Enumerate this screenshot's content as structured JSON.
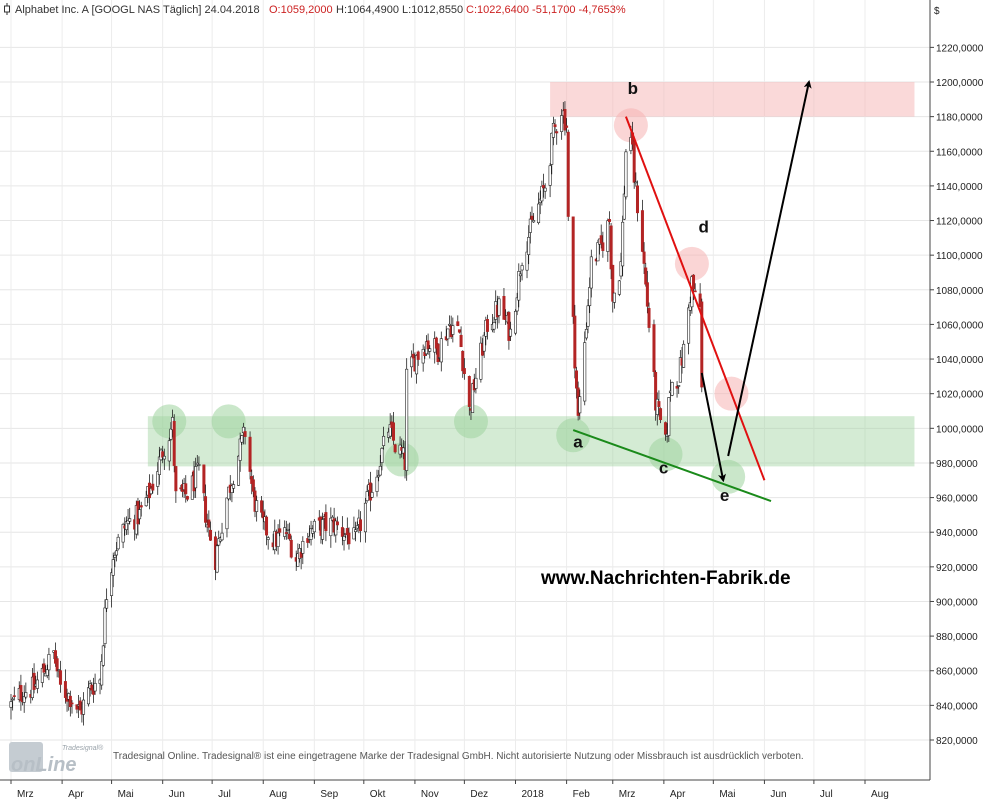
{
  "header": {
    "instrument": "Alphabet Inc. A [GOOGL NAS Täglich] 24.04.2018",
    "open": "O:1059,2000",
    "high": "H:1064,4900",
    "low": "L:1012,8550",
    "close": "C:1022,6400 -51,1700 -4,7653%"
  },
  "currency_symbol": "$",
  "watermark": "www.Nachrichten-Fabrik.de",
  "footer": "Tradesignal Online. Tradesignal® ist eine eingetragene Marke der Tradesignal GmbH. Nicht autorisierte Nutzung oder Missbrauch ist ausdrücklich verboten.",
  "logo": {
    "brand_small": "Tradesignal®",
    "brand_big": "onLine"
  },
  "colors": {
    "up_candle": "#ffffff",
    "down_candle": "#b32424",
    "wick": "#222222",
    "support_zone": "#9fd39f",
    "resistance_zone": "#f6b3b3",
    "upper_trendline": "#e01010",
    "lower_trendline": "#1a8a1a",
    "projection_arrow": "#000000"
  },
  "chart_data": {
    "type": "candlestick",
    "title": "Alphabet Inc. A [GOOGL NAS Täglich] 24.04.2018",
    "y_axis": {
      "ylim": [
        810,
        1230
      ],
      "ticks": [
        "820,0000",
        "840,0000",
        "860,0000",
        "880,0000",
        "900,0000",
        "920,0000",
        "940,0000",
        "960,0000",
        "980,0000",
        "1000,0000",
        "1020,0000",
        "1040,0000",
        "1060,0000",
        "1080,0000",
        "1100,0000",
        "1120,0000",
        "1140,0000",
        "1160,0000",
        "1180,0000",
        "1200,0000",
        "1220,0000"
      ],
      "tick_values": [
        820,
        840,
        860,
        880,
        900,
        920,
        940,
        960,
        980,
        1000,
        1020,
        1040,
        1060,
        1080,
        1100,
        1120,
        1140,
        1160,
        1180,
        1200,
        1220
      ]
    },
    "x_axis": {
      "start_date": "2017-03-01",
      "end_date": "2018-08-31",
      "labels": [
        {
          "label": "Mrz",
          "date": "2017-03-01"
        },
        {
          "label": "Apr",
          "date": "2017-04-01"
        },
        {
          "label": "Mai",
          "date": "2017-05-01"
        },
        {
          "label": "Jun",
          "date": "2017-06-01"
        },
        {
          "label": "Jul",
          "date": "2017-07-01"
        },
        {
          "label": "Aug",
          "date": "2017-08-01"
        },
        {
          "label": "Sep",
          "date": "2017-09-01"
        },
        {
          "label": "Okt",
          "date": "2017-10-01"
        },
        {
          "label": "Nov",
          "date": "2017-11-01"
        },
        {
          "label": "Dez",
          "date": "2017-12-01"
        },
        {
          "label": "2018",
          "date": "2018-01-01"
        },
        {
          "label": "Feb",
          "date": "2018-02-01"
        },
        {
          "label": "Mrz",
          "date": "2018-03-01"
        },
        {
          "label": "Apr",
          "date": "2018-04-01"
        },
        {
          "label": "Mai",
          "date": "2018-05-01"
        },
        {
          "label": "Jun",
          "date": "2018-06-01"
        },
        {
          "label": "Jul",
          "date": "2018-07-01"
        },
        {
          "label": "Aug",
          "date": "2018-08-01"
        }
      ]
    },
    "price_anchors": [
      [
        "2017-03-01",
        840
      ],
      [
        "2017-03-08",
        848
      ],
      [
        "2017-03-15",
        850
      ],
      [
        "2017-03-22",
        862
      ],
      [
        "2017-03-27",
        870
      ],
      [
        "2017-03-31",
        850
      ],
      [
        "2017-04-06",
        845
      ],
      [
        "2017-04-12",
        836
      ],
      [
        "2017-04-18",
        850
      ],
      [
        "2017-04-24",
        855
      ],
      [
        "2017-04-26",
        880
      ],
      [
        "2017-04-28",
        905
      ],
      [
        "2017-05-02",
        928
      ],
      [
        "2017-05-10",
        945
      ],
      [
        "2017-05-18",
        950
      ],
      [
        "2017-05-25",
        965
      ],
      [
        "2017-06-02",
        990
      ],
      [
        "2017-06-07",
        1002
      ],
      [
        "2017-06-09",
        960
      ],
      [
        "2017-06-16",
        962
      ],
      [
        "2017-06-23",
        975
      ],
      [
        "2017-06-28",
        945
      ],
      [
        "2017-07-03",
        925
      ],
      [
        "2017-07-10",
        960
      ],
      [
        "2017-07-17",
        985
      ],
      [
        "2017-07-21",
        998
      ],
      [
        "2017-07-26",
        960
      ],
      [
        "2017-07-31",
        945
      ],
      [
        "2017-08-08",
        935
      ],
      [
        "2017-08-15",
        940
      ],
      [
        "2017-08-21",
        925
      ],
      [
        "2017-08-28",
        940
      ],
      [
        "2017-09-05",
        943
      ],
      [
        "2017-09-12",
        945
      ],
      [
        "2017-09-19",
        940
      ],
      [
        "2017-09-26",
        935
      ],
      [
        "2017-10-02",
        955
      ],
      [
        "2017-10-09",
        975
      ],
      [
        "2017-10-16",
        1000
      ],
      [
        "2017-10-20",
        990
      ],
      [
        "2017-10-24",
        985
      ],
      [
        "2017-10-26",
        980
      ],
      [
        "2017-10-27",
        1030
      ],
      [
        "2017-11-01",
        1040
      ],
      [
        "2017-11-08",
        1050
      ],
      [
        "2017-11-15",
        1045
      ],
      [
        "2017-11-22",
        1060
      ],
      [
        "2017-11-28",
        1055
      ],
      [
        "2017-12-04",
        1010
      ],
      [
        "2017-12-08",
        1030
      ],
      [
        "2017-12-15",
        1060
      ],
      [
        "2017-12-22",
        1070
      ],
      [
        "2017-12-29",
        1055
      ],
      [
        "2018-01-05",
        1100
      ],
      [
        "2018-01-12",
        1120
      ],
      [
        "2018-01-19",
        1140
      ],
      [
        "2018-01-24",
        1170
      ],
      [
        "2018-01-29",
        1185
      ],
      [
        "2018-02-01",
        1175
      ],
      [
        "2018-02-02",
        1120
      ],
      [
        "2018-02-05",
        1060
      ],
      [
        "2018-02-08",
        1005
      ],
      [
        "2018-02-12",
        1050
      ],
      [
        "2018-02-16",
        1095
      ],
      [
        "2018-02-22",
        1105
      ],
      [
        "2018-02-27",
        1120
      ],
      [
        "2018-03-01",
        1075
      ],
      [
        "2018-03-06",
        1095
      ],
      [
        "2018-03-09",
        1160
      ],
      [
        "2018-03-12",
        1170
      ],
      [
        "2018-03-14",
        1145
      ],
      [
        "2018-03-19",
        1105
      ],
      [
        "2018-03-23",
        1060
      ],
      [
        "2018-03-27",
        1015
      ],
      [
        "2018-04-02",
        990
      ],
      [
        "2018-04-05",
        1025
      ],
      [
        "2018-04-10",
        1030
      ],
      [
        "2018-04-13",
        1045
      ],
      [
        "2018-04-18",
        1085
      ],
      [
        "2018-04-20",
        1075
      ],
      [
        "2018-04-23",
        1070
      ],
      [
        "2018-04-24",
        1022
      ]
    ],
    "zones": [
      {
        "name": "support",
        "from": "2017-05-23",
        "to": "2018-08-31",
        "y_low": 978,
        "y_high": 1007
      },
      {
        "name": "resistance",
        "from": "2018-01-22",
        "to": "2018-08-31",
        "y_low": 1180,
        "y_high": 1200
      }
    ],
    "trendlines": [
      {
        "name": "upper",
        "from": [
          "2018-03-09",
          1180
        ],
        "to": [
          "2018-06-01",
          970
        ]
      },
      {
        "name": "lower",
        "from": [
          "2018-02-05",
          999
        ],
        "to": [
          "2018-06-05",
          958
        ]
      }
    ],
    "projection_arrows": [
      {
        "from": [
          "2018-04-24",
          1032
        ],
        "to": [
          "2018-05-07",
          970
        ]
      },
      {
        "from": [
          "2018-05-10",
          984
        ],
        "to": [
          "2018-06-28",
          1200
        ]
      }
    ],
    "pivot_circles": [
      {
        "date": "2017-06-05",
        "y": 1004,
        "zone": "support"
      },
      {
        "date": "2017-07-11",
        "y": 1004,
        "zone": "support"
      },
      {
        "date": "2017-10-24",
        "y": 982,
        "zone": "support"
      },
      {
        "date": "2017-12-05",
        "y": 1004,
        "zone": "support"
      },
      {
        "date": "2018-02-05",
        "y": 996,
        "zone": "support"
      },
      {
        "date": "2018-04-02",
        "y": 985,
        "zone": "support"
      },
      {
        "date": "2018-05-10",
        "y": 972,
        "zone": "support"
      },
      {
        "date": "2018-03-12",
        "y": 1175,
        "zone": "resistance"
      },
      {
        "date": "2018-04-18",
        "y": 1095,
        "zone": "resistance"
      },
      {
        "date": "2018-05-12",
        "y": 1020,
        "zone": "resistance"
      }
    ],
    "pattern_labels": [
      {
        "text": "a",
        "date": "2018-02-05",
        "y": 989
      },
      {
        "text": "b",
        "date": "2018-03-10",
        "y": 1193
      },
      {
        "text": "c",
        "date": "2018-03-29",
        "y": 974
      },
      {
        "text": "d",
        "date": "2018-04-22",
        "y": 1113
      },
      {
        "text": "e",
        "date": "2018-05-05",
        "y": 958
      }
    ]
  }
}
